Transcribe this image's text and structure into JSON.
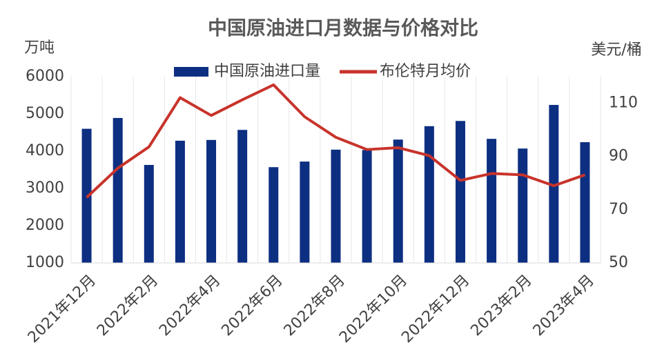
{
  "chart_data": {
    "type": "bar-line",
    "title": "中国原油进口月数据与价格对比",
    "y_label": "万吨",
    "y2_label": "美元/桶",
    "categories": [
      "2021年12月",
      null,
      "2022年2月",
      null,
      "2022年4月",
      null,
      "2022年6月",
      null,
      "2022年8月",
      null,
      "2022年10月",
      null,
      "2022年12月",
      null,
      "2023年2月",
      null,
      "2023年4月"
    ],
    "series": [
      {
        "name": "中国原油进口量",
        "type": "bar",
        "color": "#0d2f82",
        "values": [
          4600,
          4890,
          3630,
          4280,
          4300,
          4570,
          3570,
          3720,
          4040,
          4030,
          4310,
          4670,
          4810,
          4330,
          4070,
          5240,
          4240
        ]
      },
      {
        "name": "布伦特月均价",
        "type": "line",
        "axis": "y2",
        "color": "#c8332b",
        "values": [
          74.6,
          85.6,
          93.6,
          112.1,
          105.4,
          111.3,
          116.9,
          104.9,
          97.2,
          92.6,
          93.3,
          90.3,
          81.0,
          83.6,
          83.1,
          79.0,
          83.1
        ]
      }
    ],
    "ylim": [
      1000,
      6000
    ],
    "yticks": [
      1000,
      2000,
      3000,
      4000,
      5000,
      6000
    ],
    "y2lim": [
      50,
      120
    ],
    "y2ticks": [
      50,
      70,
      90,
      110
    ],
    "grid": true
  }
}
